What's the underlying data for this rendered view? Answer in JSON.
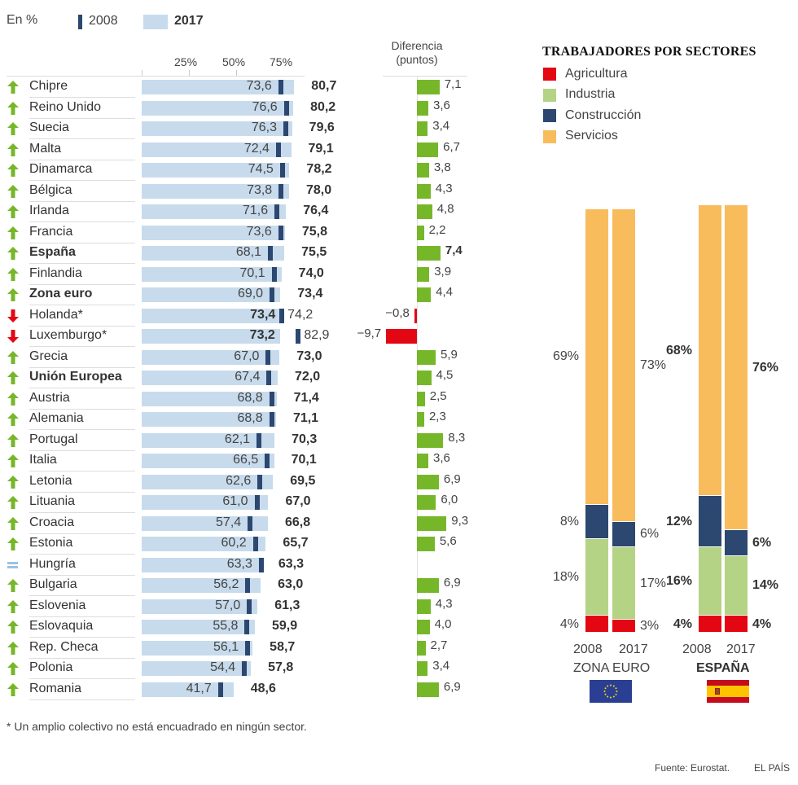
{
  "header": {
    "unit_label": "En %",
    "legend_2008": "2008",
    "legend_2017": "2017",
    "axis_ticks": [
      "25%",
      "50%",
      "75%"
    ],
    "diff_header": [
      "Diferencia",
      "(puntos)"
    ]
  },
  "colors": {
    "bar_2017": "#c7dbec",
    "marker_2008": "#2c4770",
    "up": "#76b72a",
    "down": "#e30613",
    "equal": "#9cc2e0",
    "agricultura": "#e30613",
    "industria": "#b5d384",
    "construccion": "#2c4770",
    "servicios": "#f8bc5c"
  },
  "chart_data": [
    {
      "type": "bar",
      "title": "Tasa de empleo 2008 vs 2017",
      "xlabel": "",
      "ylabel": "En %",
      "xlim": [
        0,
        100
      ],
      "legend": [
        "2008",
        "2017"
      ],
      "legend_position": "top-left",
      "rows": [
        {
          "country": "Chipre",
          "trend": "up",
          "bold": false,
          "v2008": "73,6",
          "v2017": "80,7",
          "n2008": 73.6,
          "n2017": 80.7,
          "diff": "7,1",
          "ndiff": 7.1
        },
        {
          "country": "Reino Unido",
          "trend": "up",
          "bold": false,
          "v2008": "76,6",
          "v2017": "80,2",
          "n2008": 76.6,
          "n2017": 80.2,
          "diff": "3,6",
          "ndiff": 3.6
        },
        {
          "country": "Suecia",
          "trend": "up",
          "bold": false,
          "v2008": "76,3",
          "v2017": "79,6",
          "n2008": 76.3,
          "n2017": 79.6,
          "diff": "3,4",
          "ndiff": 3.4
        },
        {
          "country": "Malta",
          "trend": "up",
          "bold": false,
          "v2008": "72,4",
          "v2017": "79,1",
          "n2008": 72.4,
          "n2017": 79.1,
          "diff": "6,7",
          "ndiff": 6.7
        },
        {
          "country": "Dinamarca",
          "trend": "up",
          "bold": false,
          "v2008": "74,5",
          "v2017": "78,2",
          "n2008": 74.5,
          "n2017": 78.2,
          "diff": "3,8",
          "ndiff": 3.8
        },
        {
          "country": "Bélgica",
          "trend": "up",
          "bold": false,
          "v2008": "73,8",
          "v2017": "78,0",
          "n2008": 73.8,
          "n2017": 78.0,
          "diff": "4,3",
          "ndiff": 4.3
        },
        {
          "country": "Irlanda",
          "trend": "up",
          "bold": false,
          "v2008": "71,6",
          "v2017": "76,4",
          "n2008": 71.6,
          "n2017": 76.4,
          "diff": "4,8",
          "ndiff": 4.8
        },
        {
          "country": "Francia",
          "trend": "up",
          "bold": false,
          "v2008": "73,6",
          "v2017": "75,8",
          "n2008": 73.6,
          "n2017": 75.8,
          "diff": "2,2",
          "ndiff": 2.2
        },
        {
          "country": "España",
          "trend": "up",
          "bold": true,
          "v2008": "68,1",
          "v2017": "75,5",
          "n2008": 68.1,
          "n2017": 75.5,
          "diff": "7,4",
          "ndiff": 7.4
        },
        {
          "country": "Finlandia",
          "trend": "up",
          "bold": false,
          "v2008": "70,1",
          "v2017": "74,0",
          "n2008": 70.1,
          "n2017": 74.0,
          "diff": "3,9",
          "ndiff": 3.9
        },
        {
          "country": "Zona euro",
          "trend": "up",
          "bold": true,
          "v2008": "69,0",
          "v2017": "73,4",
          "n2008": 69.0,
          "n2017": 73.4,
          "diff": "4,4",
          "ndiff": 4.4
        },
        {
          "country": "Holanda*",
          "trend": "down",
          "bold": false,
          "v2008": "74,2",
          "v2017": "73,4",
          "n2008": 74.2,
          "n2017": 73.4,
          "diff": "−0,8",
          "ndiff": -0.8
        },
        {
          "country": "Luxemburgo*",
          "trend": "down",
          "bold": false,
          "v2008": "82,9",
          "v2017": "73,2",
          "n2008": 82.9,
          "n2017": 73.2,
          "diff": "−9,7",
          "ndiff": -9.7
        },
        {
          "country": "Grecia",
          "trend": "up",
          "bold": false,
          "v2008": "67,0",
          "v2017": "73,0",
          "n2008": 67.0,
          "n2017": 73.0,
          "diff": "5,9",
          "ndiff": 5.9
        },
        {
          "country": "Unión Europea",
          "trend": "up",
          "bold": true,
          "v2008": "67,4",
          "v2017": "72,0",
          "n2008": 67.4,
          "n2017": 72.0,
          "diff": "4,5",
          "ndiff": 4.5
        },
        {
          "country": "Austria",
          "trend": "up",
          "bold": false,
          "v2008": "68,8",
          "v2017": "71,4",
          "n2008": 68.8,
          "n2017": 71.4,
          "diff": "2,5",
          "ndiff": 2.5
        },
        {
          "country": "Alemania",
          "trend": "up",
          "bold": false,
          "v2008": "68,8",
          "v2017": "71,1",
          "n2008": 68.8,
          "n2017": 71.1,
          "diff": "2,3",
          "ndiff": 2.3
        },
        {
          "country": "Portugal",
          "trend": "up",
          "bold": false,
          "v2008": "62,1",
          "v2017": "70,3",
          "n2008": 62.1,
          "n2017": 70.3,
          "diff": "8,3",
          "ndiff": 8.3
        },
        {
          "country": "Italia",
          "trend": "up",
          "bold": false,
          "v2008": "66,5",
          "v2017": "70,1",
          "n2008": 66.5,
          "n2017": 70.1,
          "diff": "3,6",
          "ndiff": 3.6
        },
        {
          "country": "Letonia",
          "trend": "up",
          "bold": false,
          "v2008": "62,6",
          "v2017": "69,5",
          "n2008": 62.6,
          "n2017": 69.5,
          "diff": "6,9",
          "ndiff": 6.9
        },
        {
          "country": "Lituania",
          "trend": "up",
          "bold": false,
          "v2008": "61,0",
          "v2017": "67,0",
          "n2008": 61.0,
          "n2017": 67.0,
          "diff": "6,0",
          "ndiff": 6.0
        },
        {
          "country": "Croacia",
          "trend": "up",
          "bold": false,
          "v2008": "57,4",
          "v2017": "66,8",
          "n2008": 57.4,
          "n2017": 66.8,
          "diff": "9,3",
          "ndiff": 9.3
        },
        {
          "country": "Estonia",
          "trend": "up",
          "bold": false,
          "v2008": "60,2",
          "v2017": "65,7",
          "n2008": 60.2,
          "n2017": 65.7,
          "diff": "5,6",
          "ndiff": 5.6
        },
        {
          "country": "Hungría",
          "trend": "equal",
          "bold": false,
          "v2008": "63,3",
          "v2017": "63,3",
          "n2008": 63.3,
          "n2017": 63.3,
          "diff": "",
          "ndiff": 0
        },
        {
          "country": "Bulgaria",
          "trend": "up",
          "bold": false,
          "v2008": "56,2",
          "v2017": "63,0",
          "n2008": 56.2,
          "n2017": 63.0,
          "diff": "6,9",
          "ndiff": 6.9
        },
        {
          "country": "Eslovenia",
          "trend": "up",
          "bold": false,
          "v2008": "57,0",
          "v2017": "61,3",
          "n2008": 57.0,
          "n2017": 61.3,
          "diff": "4,3",
          "ndiff": 4.3
        },
        {
          "country": "Eslovaquia",
          "trend": "up",
          "bold": false,
          "v2008": "55,8",
          "v2017": "59,9",
          "n2008": 55.8,
          "n2017": 59.9,
          "diff": "4,0",
          "ndiff": 4.0
        },
        {
          "country": "Rep. Checa",
          "trend": "up",
          "bold": false,
          "v2008": "56,1",
          "v2017": "58,7",
          "n2008": 56.1,
          "n2017": 58.7,
          "diff": "2,7",
          "ndiff": 2.7
        },
        {
          "country": "Polonia",
          "trend": "up",
          "bold": false,
          "v2008": "54,4",
          "v2017": "57,8",
          "n2008": 54.4,
          "n2017": 57.8,
          "diff": "3,4",
          "ndiff": 3.4
        },
        {
          "country": "Romania",
          "trend": "up",
          "bold": false,
          "v2008": "41,7",
          "v2017": "48,6",
          "n2008": 41.7,
          "n2017": 48.6,
          "diff": "6,9",
          "ndiff": 6.9
        }
      ]
    },
    {
      "type": "bar",
      "stacked": true,
      "title": "TRABAJADORES POR SECTORES",
      "legend": [
        "Agricultura",
        "Industria",
        "Construcción",
        "Servicios"
      ],
      "legend_position": "top",
      "groups": [
        {
          "name": "ZONA EURO",
          "bold": false,
          "flag": "eu-flag",
          "bars": [
            {
              "year": "2008",
              "agricultura": 4,
              "industria": 18,
              "construccion": 8,
              "servicios": 69,
              "labels": [
                "4%",
                "18%",
                "8%",
                "69%"
              ]
            },
            {
              "year": "2017",
              "agricultura": 3,
              "industria": 17,
              "construccion": 6,
              "servicios": 73,
              "labels": [
                "3%",
                "17%",
                "6%",
                "73%"
              ]
            }
          ]
        },
        {
          "name": "ESPAÑA",
          "bold": true,
          "flag": "spain-flag",
          "bars": [
            {
              "year": "2008",
              "agricultura": 4,
              "industria": 16,
              "construccion": 12,
              "servicios": 68,
              "labels": [
                "4%",
                "16%",
                "12%",
                "68%"
              ]
            },
            {
              "year": "2017",
              "agricultura": 4,
              "industria": 14,
              "construccion": 6,
              "servicios": 76,
              "labels": [
                "4%",
                "14%",
                "6%",
                "76%"
              ]
            }
          ]
        }
      ]
    }
  ],
  "footer": {
    "footnote": "* Un amplio colectivo no está encuadrado en ningún sector.",
    "source": "Fuente: Eurostat.",
    "brand": "EL PAÍS"
  }
}
